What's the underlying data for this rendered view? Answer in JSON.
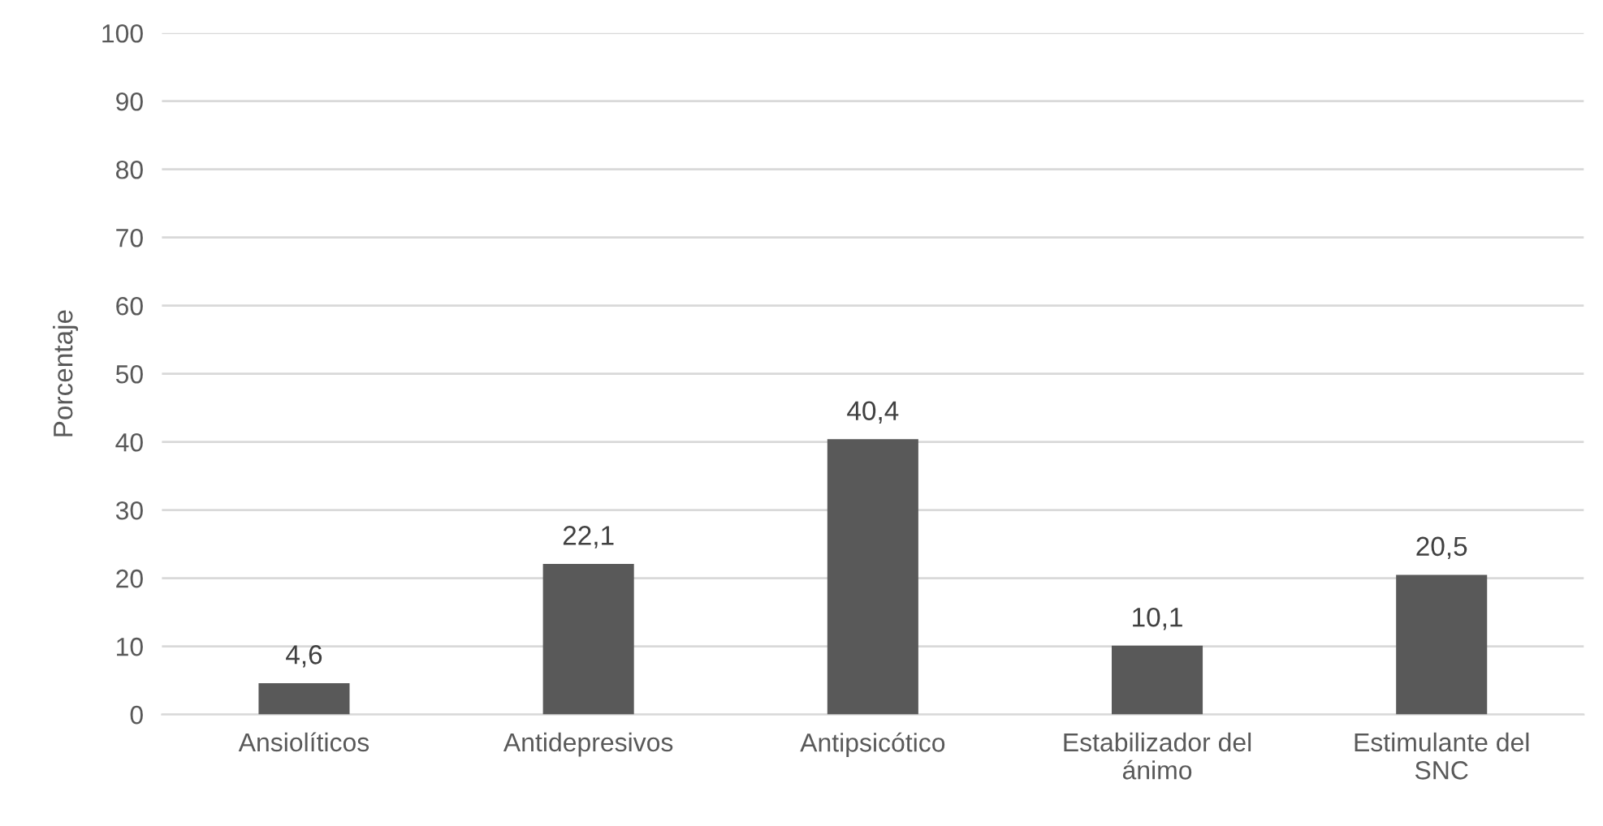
{
  "chart_data": {
    "type": "bar",
    "ylabel": "Porcentaje",
    "categories": [
      "Ansiolíticos",
      "Antidepresivos",
      "Antipsicótico",
      "Estabilizador del ánimo",
      "Estimulante del SNC"
    ],
    "values": [
      4.6,
      22.1,
      40.4,
      10.1,
      20.5
    ],
    "value_labels": [
      "4,6",
      "22,1",
      "40,4",
      "10,1",
      "20,5"
    ],
    "color": "#595959",
    "ylim": [
      0,
      100
    ],
    "yticks": [
      0,
      10,
      20,
      30,
      40,
      50,
      60,
      70,
      80,
      90,
      100
    ],
    "grid": "y",
    "legend": false
  }
}
